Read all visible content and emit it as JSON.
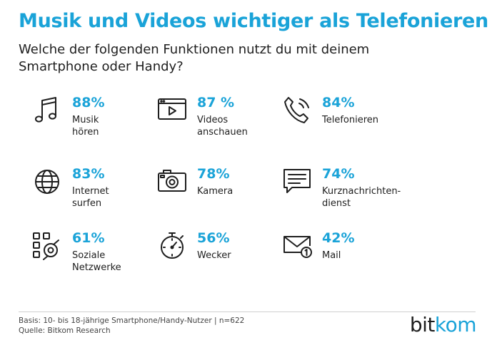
{
  "header": {
    "title": "Musik und Videos wichtiger als Telefonieren",
    "subtitle": "Welche der folgenden Funktionen nutzt du mit deinem Smartphone oder Handy?"
  },
  "items": [
    {
      "value": "88%",
      "label1": "Musik",
      "label2": "hören",
      "icon": "music-note-icon"
    },
    {
      "value": "87 %",
      "label1": "Videos",
      "label2": "anschauen",
      "icon": "video-player-icon"
    },
    {
      "value": "84%",
      "label1": "Telefonieren",
      "label2": "",
      "icon": "phone-icon"
    },
    {
      "value": "83%",
      "label1": "Internet",
      "label2": "surfen",
      "icon": "globe-icon"
    },
    {
      "value": "78%",
      "label1": "Kamera",
      "label2": "",
      "icon": "camera-icon"
    },
    {
      "value": "74%",
      "label1": "Kurznachrichten-",
      "label2": "dienst",
      "icon": "chat-bubble-icon"
    },
    {
      "value": "61%",
      "label1": "Soziale",
      "label2": "Netzwerke",
      "icon": "social-network-icon"
    },
    {
      "value": "56%",
      "label1": "Wecker",
      "label2": "",
      "icon": "stopwatch-icon"
    },
    {
      "value": "42%",
      "label1": "Mail",
      "label2": "",
      "icon": "mail-icon"
    }
  ],
  "chart_data": {
    "type": "table",
    "title": "Musik und Videos wichtiger als Telefonieren",
    "subtitle": "Welche der folgenden Funktionen nutzt du mit deinem Smartphone oder Handy?",
    "categories": [
      "Musik hören",
      "Videos anschauen",
      "Telefonieren",
      "Internet surfen",
      "Kamera",
      "Kurznachrichtendienst",
      "Soziale Netzwerke",
      "Wecker",
      "Mail"
    ],
    "values": [
      88,
      87,
      84,
      83,
      78,
      74,
      61,
      56,
      42
    ],
    "unit": "%"
  },
  "footer": {
    "basis": "Basis: 10- bis 18-jährige Smartphone/Handy-Nutzer  | n=622",
    "source": "Quelle: Bitkom Research"
  },
  "logo": {
    "part1": "bit",
    "part2": "kom"
  },
  "colors": {
    "accent": "#1aa3d8",
    "text": "#1e1e1e"
  }
}
